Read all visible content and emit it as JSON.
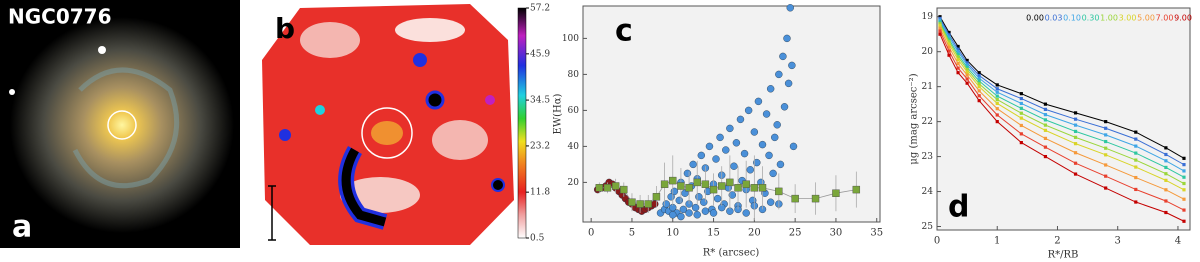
{
  "chart_data": [
    {
      "type": "image",
      "title": "NGC0776",
      "label": "a"
    },
    {
      "type": "colormap",
      "label": "b",
      "clim": [
        0.5,
        57.2
      ],
      "cticks": [
        57.2,
        45.9,
        34.5,
        23.2,
        11.8,
        0.5
      ]
    },
    {
      "type": "scatter",
      "label": "c",
      "xlabel": "R* (arcsec)",
      "ylabel": "EW(Hα)",
      "xlim": [
        -1,
        35.4
      ],
      "ylim": [
        -2,
        118
      ],
      "xticks": [
        0,
        5,
        10,
        15,
        20,
        25,
        30,
        35
      ],
      "yticks": [
        20,
        40,
        60,
        80,
        100
      ],
      "series": [
        {
          "color": "#4a90d9",
          "marker": "circle",
          "x": [
            8.5,
            9,
            9.2,
            9.5,
            9.8,
            10,
            10.2,
            10.5,
            10.8,
            11,
            11.3,
            11.5,
            11.8,
            12,
            12.3,
            12.5,
            12.8,
            13,
            13.2,
            13.5,
            13.8,
            14,
            14.3,
            14.5,
            14.8,
            15,
            15.3,
            15.5,
            15.8,
            16,
            16.3,
            16.5,
            16.8,
            17,
            17.3,
            17.5,
            17.8,
            18,
            18.3,
            18.5,
            18.8,
            19,
            19.3,
            19.5,
            19.8,
            20,
            20.3,
            20.5,
            20.8,
            21,
            21.3,
            21.5,
            21.8,
            22,
            22.3,
            22.5,
            22.8,
            23,
            23.2,
            23.5,
            23.7,
            24,
            24.2,
            24.4,
            24.6,
            24.8,
            10,
            12,
            14,
            16,
            18,
            20,
            22,
            11,
            13,
            15,
            17,
            19,
            21,
            23
          ],
          "values": [
            3,
            5,
            8,
            4,
            12,
            6,
            15,
            3,
            10,
            20,
            5,
            14,
            25,
            8,
            18,
            30,
            6,
            22,
            12,
            35,
            9,
            28,
            15,
            40,
            5,
            19,
            33,
            11,
            45,
            24,
            8,
            38,
            17,
            50,
            13,
            29,
            42,
            7,
            55,
            21,
            36,
            16,
            60,
            27,
            10,
            48,
            31,
            65,
            20,
            41,
            14,
            58,
            35,
            72,
            25,
            45,
            52,
            80,
            30,
            90,
            62,
            100,
            75,
            117,
            85,
            40,
            2,
            3,
            4,
            6,
            5,
            7,
            9,
            1,
            2,
            3,
            4,
            3,
            5,
            8
          ]
        },
        {
          "color": "#8b1a1a",
          "marker": "circle",
          "x": [
            0.8,
            1.3,
            1.8,
            2.2,
            2.6,
            3,
            3.4,
            3.8,
            4.2,
            4.6,
            5,
            5.4,
            5.8,
            6.2,
            6.6,
            7,
            7.4,
            7.8
          ],
          "values": [
            16,
            17,
            18,
            20,
            19,
            17,
            15,
            13,
            11,
            9,
            8,
            6,
            5,
            4,
            5,
            6,
            7,
            8
          ]
        },
        {
          "color": "#7aa63a",
          "marker": "square",
          "x": [
            1,
            2,
            3,
            4,
            5,
            6,
            7,
            8,
            9,
            10,
            11,
            12,
            13,
            14,
            15,
            16,
            17,
            18,
            19,
            20,
            21,
            23,
            25,
            27.5,
            30,
            32.5
          ],
          "values": [
            17,
            17,
            18,
            16,
            9,
            8,
            8,
            12,
            19,
            21,
            18,
            17,
            20,
            19,
            16,
            18,
            20,
            17,
            19,
            17,
            17,
            15,
            11,
            11,
            14,
            16
          ],
          "errors": [
            3,
            3,
            4,
            4,
            5,
            5,
            5,
            6,
            12,
            14,
            10,
            9,
            12,
            10,
            9,
            11,
            15,
            12,
            13,
            18,
            12,
            10,
            8,
            9,
            10,
            10
          ]
        }
      ]
    },
    {
      "type": "line",
      "label": "d",
      "xlabel": "R*/RB",
      "ylabel": "μg (mag arcsec⁻²)",
      "xlim": [
        0,
        4.2
      ],
      "ylim": [
        25.1,
        18.75
      ],
      "xticks": [
        0,
        1,
        2,
        3,
        4
      ],
      "yticks": [
        19,
        20,
        21,
        22,
        23,
        24,
        25
      ],
      "x": [
        0.05,
        0.2,
        0.35,
        0.5,
        0.7,
        1.0,
        1.4,
        1.8,
        2.3,
        2.8,
        3.3,
        3.8,
        4.1
      ],
      "series": [
        {
          "name": "0.00",
          "color": "#000000",
          "values": [
            19.0,
            19.45,
            19.85,
            20.25,
            20.6,
            20.95,
            21.2,
            21.5,
            21.75,
            22.0,
            22.3,
            22.75,
            23.05
          ]
        },
        {
          "name": "0.03",
          "color": "#3a6fd5",
          "values": [
            19.05,
            19.52,
            19.93,
            20.32,
            20.68,
            21.06,
            21.34,
            21.65,
            21.93,
            22.19,
            22.5,
            22.94,
            23.23
          ]
        },
        {
          "name": "0.10",
          "color": "#3fa6e6",
          "values": [
            19.1,
            19.58,
            20.0,
            20.38,
            20.76,
            21.16,
            21.48,
            21.8,
            22.1,
            22.38,
            22.7,
            23.12,
            23.41
          ]
        },
        {
          "name": "0.30",
          "color": "#2ec7a0",
          "values": [
            19.15,
            19.65,
            20.08,
            20.45,
            20.84,
            21.27,
            21.62,
            21.95,
            22.28,
            22.57,
            22.9,
            23.31,
            23.59
          ]
        },
        {
          "name": "1.00",
          "color": "#9bd63a",
          "values": [
            19.2,
            19.71,
            20.15,
            20.51,
            20.92,
            21.37,
            21.76,
            22.1,
            22.45,
            22.76,
            23.1,
            23.49,
            23.77
          ]
        },
        {
          "name": "3.00",
          "color": "#d9d428",
          "values": [
            19.25,
            19.78,
            20.23,
            20.58,
            21.0,
            21.48,
            21.9,
            22.25,
            22.63,
            22.95,
            23.3,
            23.68,
            23.95
          ]
        },
        {
          "name": "5.00",
          "color": "#f5993a",
          "values": [
            19.33,
            19.87,
            20.34,
            20.67,
            21.12,
            21.63,
            22.11,
            22.48,
            22.89,
            23.24,
            23.6,
            23.95,
            24.22
          ]
        },
        {
          "name": "7.00",
          "color": "#e8402e",
          "values": [
            19.41,
            19.98,
            20.47,
            20.78,
            21.26,
            21.81,
            22.35,
            22.73,
            23.19,
            23.56,
            23.94,
            24.27,
            24.53
          ]
        },
        {
          "name": "9.00",
          "color": "#c40000",
          "values": [
            19.5,
            20.1,
            20.6,
            20.9,
            21.4,
            22.0,
            22.6,
            23.0,
            23.5,
            23.9,
            24.3,
            24.6,
            24.85
          ]
        }
      ]
    }
  ]
}
